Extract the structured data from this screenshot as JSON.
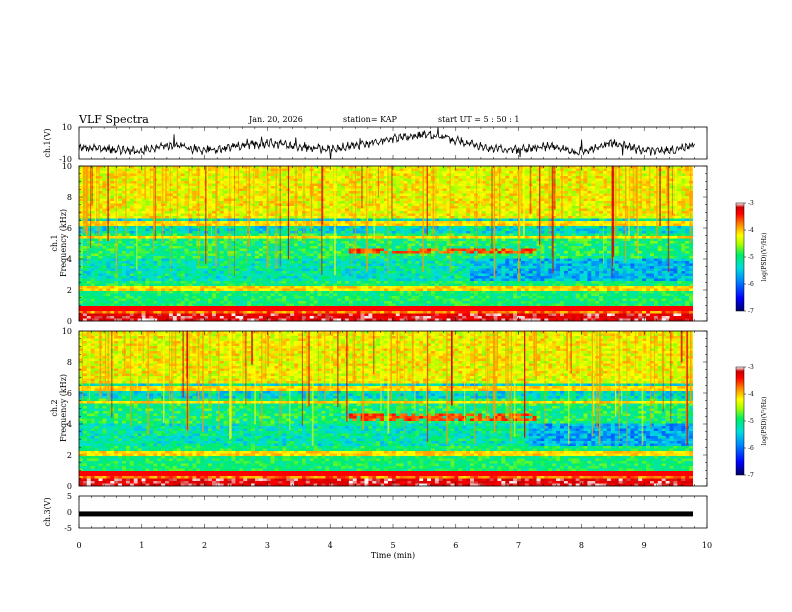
{
  "header": {
    "title": "VLF Spectra",
    "date": "Jan. 20, 2026",
    "station": "station= KAP",
    "start_ut": "start UT =  5 : 50 : 1"
  },
  "chart_data": [
    {
      "type": "line",
      "name": "ch1-waveform",
      "ylabel": "ch.1(V)",
      "ylim": [
        -10,
        10
      ],
      "yticks": [
        "10",
        "-10"
      ],
      "xlim": [
        0,
        10
      ],
      "trace_profile": {
        "x": [
          0,
          0.5,
          1,
          1.5,
          2,
          2.5,
          3,
          3.5,
          4,
          4.5,
          5,
          5.5,
          6,
          6.5,
          7,
          7.5,
          8,
          8.5,
          9,
          9.5,
          9.8
        ],
        "y": [
          -3,
          -4,
          -5,
          -1,
          -5,
          -2,
          0,
          -2,
          -4,
          -1,
          3,
          5,
          2,
          -3,
          -4,
          -2,
          -6,
          0,
          -5,
          -4,
          -1
        ]
      }
    },
    {
      "type": "heatmap",
      "name": "ch1-spectrogram",
      "ylabel": "Frequency (kHz)",
      "channel_label": "ch.1",
      "ylim": [
        0,
        10
      ],
      "xlim": [
        0,
        9.83
      ],
      "yticks": [
        "0",
        "2",
        "4",
        "6",
        "8",
        "10"
      ],
      "colorbar": {
        "label": "log(PSD)(V²/Hz)",
        "range": [
          -7,
          -3
        ],
        "ticks": [
          "-3",
          "-4",
          "-5",
          "-6",
          "-7"
        ]
      }
    },
    {
      "type": "heatmap",
      "name": "ch2-spectrogram",
      "ylabel": "Frequency (kHz)",
      "channel_label": "ch.2",
      "ylim": [
        0,
        10
      ],
      "xlim": [
        0,
        9.83
      ],
      "yticks": [
        "0",
        "2",
        "4",
        "6",
        "8",
        "10"
      ],
      "colorbar": {
        "label": "log(PSD)(V²/Hz)",
        "range": [
          -7,
          -3
        ],
        "ticks": [
          "-3",
          "-4",
          "-5",
          "-6",
          "-7"
        ]
      }
    },
    {
      "type": "line",
      "name": "ch3-waveform",
      "ylabel": "ch.3(V)",
      "ylim": [
        -5,
        5
      ],
      "yticks": [
        "5",
        "0",
        "-5"
      ],
      "xlim": [
        0,
        10
      ],
      "trace_level": -0.6,
      "xlabel": "Time (min)",
      "xticks": [
        "0",
        "1",
        "2",
        "3",
        "4",
        "5",
        "6",
        "7",
        "8",
        "9",
        "10"
      ]
    }
  ],
  "colors": {
    "frame": "#000000",
    "colormap": [
      "#000066",
      "#0000ff",
      "#0088ff",
      "#00dddd",
      "#00ee66",
      "#aaff00",
      "#ffff00",
      "#ff8800",
      "#ff0000",
      "#cc0000",
      "#ffffff"
    ]
  }
}
